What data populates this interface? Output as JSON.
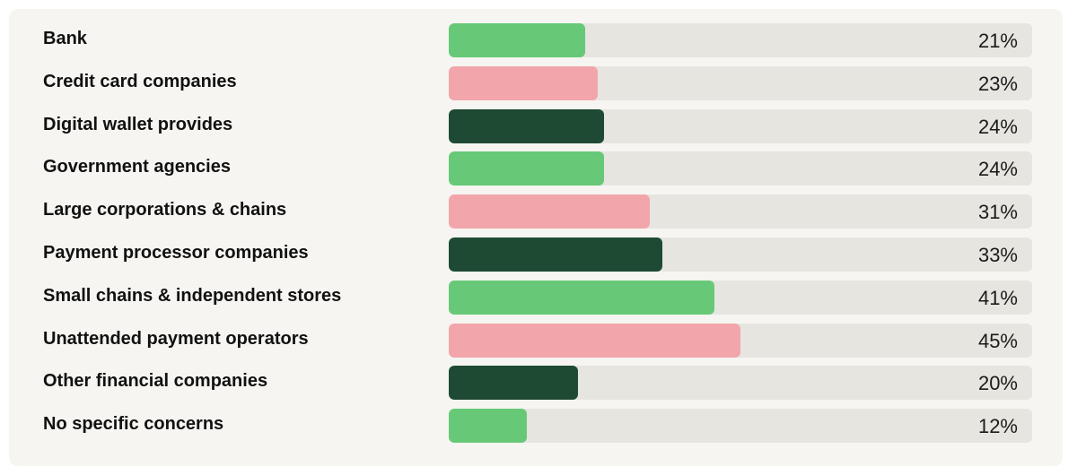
{
  "chart_data": {
    "type": "bar",
    "orientation": "horizontal",
    "categories": [
      "Bank",
      "Credit card companies",
      "Digital wallet provides",
      "Government agencies",
      "Large corporations & chains",
      "Payment processor companies",
      "Small chains & independent stores",
      "Unattended payment operators",
      "Other financial companies",
      "No specific concerns"
    ],
    "values": [
      21,
      23,
      24,
      24,
      31,
      33,
      41,
      45,
      20,
      12
    ],
    "value_labels": [
      "21%",
      "23%",
      "24%",
      "24%",
      "31%",
      "33%",
      "41%",
      "45%",
      "20%",
      "12%"
    ],
    "bar_colors": [
      "#67c977",
      "#f2a6ab",
      "#1e4a33",
      "#67c977",
      "#f2a6ab",
      "#1e4a33",
      "#67c977",
      "#f2a6ab",
      "#1e4a33",
      "#67c977"
    ],
    "unit": "%",
    "xlim": [
      0,
      90
    ],
    "title": "",
    "xlabel": "",
    "ylabel": "",
    "grid": false,
    "legend": "none"
  },
  "colors": {
    "panel_background": "#f6f5f1",
    "track": "#e6e5e0",
    "green": "#67c977",
    "pink": "#f2a6ab",
    "dark_green": "#1e4a33"
  }
}
